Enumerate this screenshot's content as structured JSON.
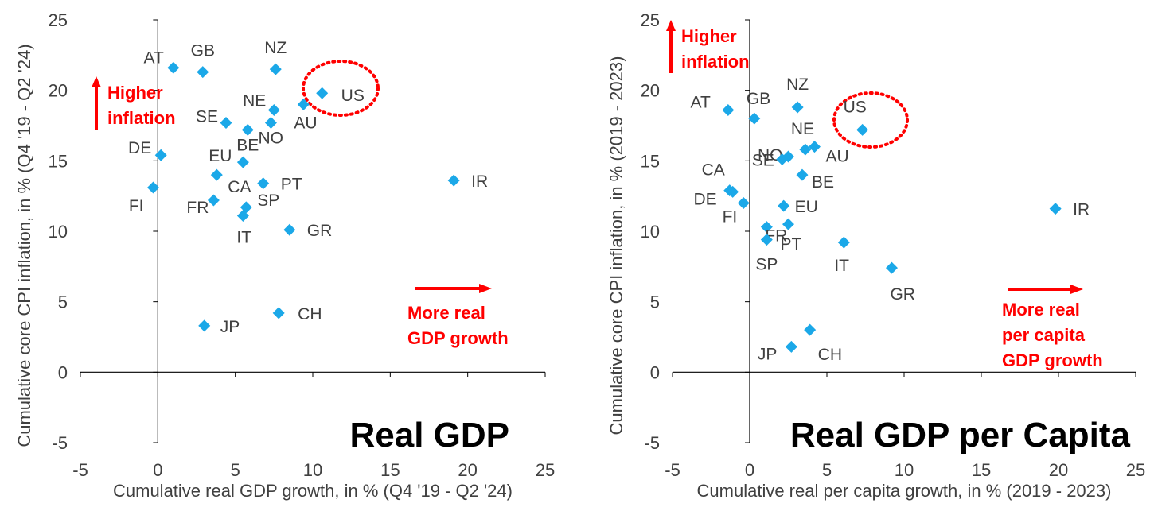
{
  "chart_data": [
    {
      "type": "scatter",
      "title": "Real GDP",
      "xlabel": "Cumulative real GDP growth, in % (Q4 '19 - Q2 '24)",
      "ylabel": "Cumulative core CPI inflation, in % (Q4 '19 - Q2 '24)",
      "xlim": [
        -5,
        25
      ],
      "ylim": [
        -5,
        25
      ],
      "x_ticks": [
        -5,
        0,
        5,
        10,
        15,
        20,
        25
      ],
      "y_ticks": [
        -5,
        0,
        5,
        10,
        15,
        20,
        25
      ],
      "grid": false,
      "marker_color": "#1BA8E8",
      "annotation_color": "#FF0000",
      "annotations": [
        {
          "lines": [
            "Higher",
            "inflation"
          ],
          "arrow": "up"
        },
        {
          "lines": [
            "More real",
            "GDP growth"
          ],
          "arrow": "right"
        }
      ],
      "highlight": "US",
      "points": [
        {
          "label": "AT",
          "x": 1.0,
          "y": 21.6
        },
        {
          "label": "GB",
          "x": 2.9,
          "y": 21.3
        },
        {
          "label": "NZ",
          "x": 7.6,
          "y": 21.5
        },
        {
          "label": "US",
          "x": 10.6,
          "y": 19.8
        },
        {
          "label": "AU",
          "x": 9.4,
          "y": 19.0
        },
        {
          "label": "NE",
          "x": 7.5,
          "y": 18.6
        },
        {
          "label": "NO",
          "x": 7.3,
          "y": 17.7
        },
        {
          "label": "SE",
          "x": 4.4,
          "y": 17.7
        },
        {
          "label": "BE",
          "x": 5.8,
          "y": 17.2
        },
        {
          "label": "DE",
          "x": 0.2,
          "y": 15.4
        },
        {
          "label": "EU",
          "x": 5.5,
          "y": 14.9
        },
        {
          "label": "CA",
          "x": 3.8,
          "y": 14.0
        },
        {
          "label": "PT",
          "x": 6.8,
          "y": 13.4
        },
        {
          "label": "FI",
          "x": -0.3,
          "y": 13.1
        },
        {
          "label": "IR",
          "x": 19.1,
          "y": 13.6
        },
        {
          "label": "FR",
          "x": 3.6,
          "y": 12.2
        },
        {
          "label": "SP",
          "x": 5.7,
          "y": 11.7
        },
        {
          "label": "IT",
          "x": 5.5,
          "y": 11.1
        },
        {
          "label": "GR",
          "x": 8.5,
          "y": 10.1
        },
        {
          "label": "CH",
          "x": 7.8,
          "y": 4.2
        },
        {
          "label": "JP",
          "x": 3.0,
          "y": 3.3
        }
      ]
    },
    {
      "type": "scatter",
      "title": "Real GDP per Capita",
      "xlabel": "Cumulative real per capita growth, in % (2019 - 2023)",
      "ylabel": "Cumulative core CPI inflation, in % (2019 - 2023)",
      "xlim": [
        -5,
        25
      ],
      "ylim": [
        -5,
        25
      ],
      "x_ticks": [
        -5,
        0,
        5,
        10,
        15,
        20,
        25
      ],
      "y_ticks": [
        -5,
        0,
        5,
        10,
        15,
        20,
        25
      ],
      "grid": false,
      "marker_color": "#1BA8E8",
      "annotation_color": "#FF0000",
      "annotations": [
        {
          "lines": [
            "Higher",
            "inflation"
          ],
          "arrow": "up"
        },
        {
          "lines": [
            "More real",
            "per capita",
            "GDP growth"
          ],
          "arrow": "right"
        }
      ],
      "highlight": "US",
      "points": [
        {
          "label": "AT",
          "x": -1.4,
          "y": 18.6
        },
        {
          "label": "GB",
          "x": 0.3,
          "y": 18.0
        },
        {
          "label": "NZ",
          "x": 3.1,
          "y": 18.8
        },
        {
          "label": "US",
          "x": 7.3,
          "y": 17.2
        },
        {
          "label": "NE",
          "x": 3.6,
          "y": 15.8
        },
        {
          "label": "AU",
          "x": 4.2,
          "y": 16.0
        },
        {
          "label": "NO",
          "x": 2.5,
          "y": 15.3
        },
        {
          "label": "SE",
          "x": 2.1,
          "y": 15.1
        },
        {
          "label": "BE",
          "x": 3.4,
          "y": 14.0
        },
        {
          "label": "CA",
          "x": -1.3,
          "y": 12.9
        },
        {
          "label": "DE",
          "x": -1.1,
          "y": 12.8
        },
        {
          "label": "FI",
          "x": -0.4,
          "y": 12.0
        },
        {
          "label": "EU",
          "x": 2.2,
          "y": 11.8
        },
        {
          "label": "IR",
          "x": 19.8,
          "y": 11.6
        },
        {
          "label": "FR",
          "x": 1.1,
          "y": 10.3
        },
        {
          "label": "PT",
          "x": 2.5,
          "y": 10.5
        },
        {
          "label": "SP",
          "x": 1.1,
          "y": 9.4
        },
        {
          "label": "IT",
          "x": 6.1,
          "y": 9.2
        },
        {
          "label": "GR",
          "x": 9.2,
          "y": 7.4
        },
        {
          "label": "CH",
          "x": 3.9,
          "y": 3.0
        },
        {
          "label": "JP",
          "x": 2.7,
          "y": 1.8
        }
      ]
    }
  ]
}
